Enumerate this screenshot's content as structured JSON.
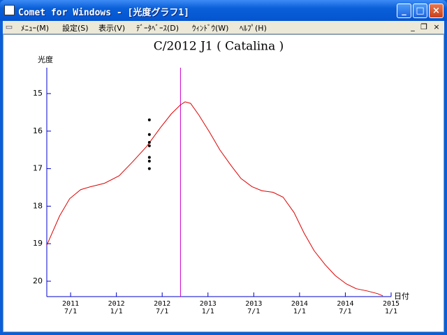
{
  "window": {
    "title": "Comet for Windows - [光度グラフ1]"
  },
  "menu": [
    "ﾒﾆｭｰ(M)",
    "設定(S)",
    "表示(V)",
    "ﾃﾞｰﾀﾍﾞｰｽ(D)",
    "ｳｨﾝﾄﾞｳ(W)",
    "ﾍﾙﾌﾟ(H)"
  ],
  "chart_data": {
    "type": "line",
    "title": "C/2012 J1 ( Catalina )",
    "y_label": "光度",
    "x_label": "日付",
    "xlim": [
      2011.24,
      2015.0
    ],
    "ylim": [
      20.41,
      14.31
    ],
    "xticks": [
      {
        "value": 2011.5,
        "label": "2011\n7/1"
      },
      {
        "value": 2012.0,
        "label": "2012\n1/1"
      },
      {
        "value": 2012.5,
        "label": "2012\n7/1"
      },
      {
        "value": 2013.0,
        "label": "2013\n1/1"
      },
      {
        "value": 2013.5,
        "label": "2013\n7/1"
      },
      {
        "value": 2014.0,
        "label": "2014\n1/1"
      },
      {
        "value": 2014.5,
        "label": "2014\n7/1"
      },
      {
        "value": 2015.0,
        "label": "2015\n1/1"
      }
    ],
    "yticks": [
      15,
      16,
      17,
      18,
      19,
      20
    ],
    "marker_x": 2012.7,
    "marker_color": "#cc00cc",
    "series": [
      {
        "mode": "line",
        "color": "#dd0000",
        "x": [
          2011.24,
          2011.38,
          2011.49,
          2011.61,
          2011.72,
          2011.87,
          2012.03,
          2012.18,
          2012.33,
          2012.48,
          2012.6,
          2012.7,
          2012.75,
          2012.81,
          2012.9,
          2013.02,
          2013.13,
          2013.25,
          2013.36,
          2013.48,
          2013.59,
          2013.71,
          2013.82,
          2013.94,
          2014.05,
          2014.16,
          2014.28,
          2014.39,
          2014.51,
          2014.62,
          2014.74,
          2014.85,
          2014.91
        ],
        "values": [
          19.04,
          18.26,
          17.8,
          17.56,
          17.48,
          17.39,
          17.19,
          16.81,
          16.41,
          15.91,
          15.54,
          15.3,
          15.22,
          15.26,
          15.57,
          16.04,
          16.5,
          16.91,
          17.26,
          17.48,
          17.59,
          17.63,
          17.76,
          18.17,
          18.72,
          19.19,
          19.56,
          19.85,
          20.07,
          20.2,
          20.26,
          20.33,
          20.39
        ]
      },
      {
        "mode": "markers",
        "color": "#000000",
        "x": [
          2012.36,
          2012.36,
          2012.36,
          2012.36,
          2012.36,
          2012.36,
          2012.36
        ],
        "values": [
          15.7,
          16.09,
          16.3,
          16.39,
          16.7,
          16.8,
          17.0
        ]
      }
    ]
  }
}
